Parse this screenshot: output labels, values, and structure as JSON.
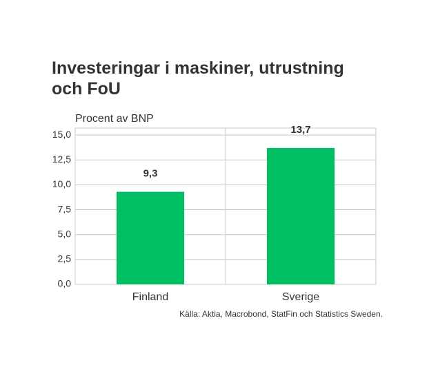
{
  "chart_data": {
    "type": "bar",
    "title": "Investeringar i maskiner, utrustning och FoU",
    "y_label": "Procent av BNP",
    "categories": [
      "Finland",
      "Sverige"
    ],
    "values": [
      9.3,
      13.7
    ],
    "value_labels": [
      "9,3",
      "13,7"
    ],
    "color": "#00bf63",
    "ylim": [
      0,
      15.7
    ],
    "yticks": [
      {
        "value": 0,
        "label": "0,0"
      },
      {
        "value": 2.5,
        "label": "2,5"
      },
      {
        "value": 5,
        "label": "5,0"
      },
      {
        "value": 7.5,
        "label": "7,5"
      },
      {
        "value": 10,
        "label": "10,0"
      },
      {
        "value": 12.5,
        "label": "12,5"
      },
      {
        "value": 15,
        "label": "15,0"
      }
    ],
    "grid": true,
    "source": "Källa: Aktia, Macrobond, StatFin och Statistics Sweden."
  }
}
